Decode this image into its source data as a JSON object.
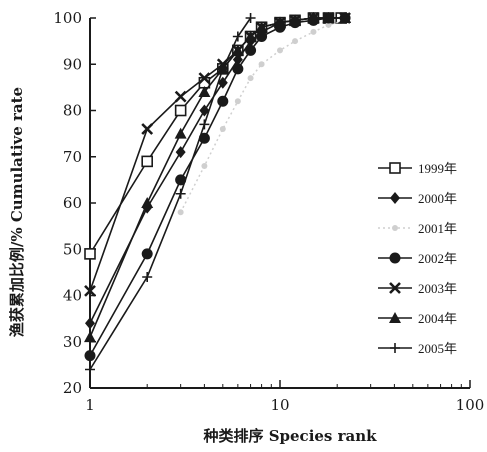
{
  "chart_data": {
    "type": "line",
    "xlabel": "种类排序  Species rank",
    "ylabel": "渔获累加比例/% Cumulative rate",
    "xscale": "log",
    "xlim": [
      1,
      100
    ],
    "ylim": [
      20,
      100
    ],
    "xticks": [
      "1",
      "10",
      "100"
    ],
    "yticks": [
      "20",
      "30",
      "40",
      "50",
      "60",
      "70",
      "80",
      "90",
      "100"
    ],
    "grid": false,
    "legend_position": "right",
    "series": [
      {
        "name": "1999年",
        "marker": "square-open",
        "color": "#1a1a1a",
        "x": [
          1,
          2,
          3,
          4,
          5,
          6,
          7,
          8,
          10,
          12,
          15,
          18,
          21
        ],
        "y": [
          49,
          69,
          80,
          86,
          89,
          93,
          96,
          98,
          99,
          99.5,
          100,
          100,
          100
        ]
      },
      {
        "name": "2000年",
        "marker": "diamond",
        "color": "#1a1a1a",
        "x": [
          1,
          2,
          3,
          4,
          5,
          6,
          7,
          8,
          10,
          12,
          15,
          18,
          22
        ],
        "y": [
          34,
          59,
          71,
          80,
          86,
          91,
          95,
          97,
          99,
          99.5,
          100,
          100,
          100
        ]
      },
      {
        "name": "2001年",
        "marker": "dot-light",
        "color": "#cfcfcf",
        "x": [
          3,
          4,
          5,
          6,
          7,
          8,
          10,
          12,
          15,
          18,
          22
        ],
        "y": [
          58,
          68,
          76,
          82,
          87,
          90,
          93,
          95,
          97,
          98.5,
          99.5
        ]
      },
      {
        "name": "2002年",
        "marker": "circle-filled",
        "color": "#1a1a1a",
        "x": [
          1,
          2,
          3,
          4,
          5,
          6,
          7,
          8,
          10,
          12,
          15,
          18,
          22
        ],
        "y": [
          27,
          49,
          65,
          74,
          82,
          89,
          93,
          96,
          98,
          99,
          99.5,
          100,
          100
        ]
      },
      {
        "name": "2003年",
        "marker": "x-cross",
        "color": "#1a1a1a",
        "x": [
          1,
          2,
          3,
          4,
          5,
          6,
          7,
          8,
          10,
          12,
          15,
          18,
          22
        ],
        "y": [
          41,
          76,
          83,
          87,
          90,
          93,
          96,
          98,
          99,
          99.5,
          100,
          100,
          100
        ]
      },
      {
        "name": "2004年",
        "marker": "triangle-filled",
        "color": "#1a1a1a",
        "x": [
          1,
          2,
          3,
          4,
          5,
          6,
          7,
          8,
          10,
          12,
          15,
          18,
          22
        ],
        "y": [
          31,
          60,
          75,
          84,
          89,
          93,
          96,
          98,
          99,
          99.5,
          100,
          100,
          100
        ]
      },
      {
        "name": "2005年",
        "marker": "plus",
        "color": "#1a1a1a",
        "x": [
          1,
          2,
          3,
          4,
          5,
          6,
          7
        ],
        "y": [
          24,
          44,
          62,
          77,
          89,
          96,
          100
        ]
      }
    ]
  }
}
